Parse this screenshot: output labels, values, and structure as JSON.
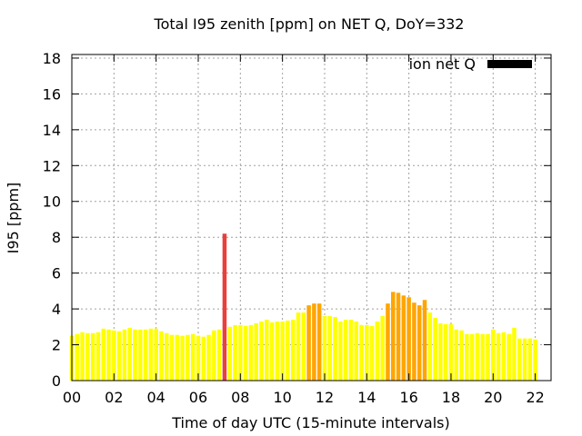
{
  "chart_data": {
    "type": "bar",
    "title": "Total I95 zenith [ppm] on NET Q, DoY=332",
    "xlabel": "Time of day UTC (15-minute intervals)",
    "ylabel": "I95 [ppm]",
    "xlim": [
      0,
      22.75
    ],
    "ylim": [
      0,
      18.2
    ],
    "x_ticks": [
      "00",
      "02",
      "04",
      "06",
      "08",
      "10",
      "12",
      "14",
      "16",
      "18",
      "20",
      "22"
    ],
    "y_ticks": [
      "0",
      "2",
      "4",
      "6",
      "8",
      "10",
      "12",
      "14",
      "16",
      "18"
    ],
    "grid": true,
    "legend": {
      "position": "top-right",
      "label": "ion net Q",
      "color": "#000000"
    },
    "bar_interval_hours": 0.25,
    "colors": {
      "low": "#ffff00",
      "mid": "#ffa500",
      "high": "#e8403c"
    },
    "series": [
      {
        "name": "ion net Q",
        "values": [
          2.5,
          2.6,
          2.7,
          2.65,
          2.65,
          2.7,
          2.9,
          2.85,
          2.8,
          2.75,
          2.85,
          2.95,
          2.85,
          2.85,
          2.85,
          2.9,
          2.9,
          2.75,
          2.65,
          2.55,
          2.55,
          2.5,
          2.55,
          2.6,
          2.5,
          2.45,
          2.55,
          2.8,
          2.85,
          8.2,
          3.0,
          3.1,
          3.1,
          3.05,
          3.1,
          3.2,
          3.3,
          3.4,
          3.25,
          3.3,
          3.3,
          3.35,
          3.4,
          3.8,
          3.8,
          4.2,
          4.3,
          4.3,
          3.6,
          3.6,
          3.55,
          3.3,
          3.4,
          3.4,
          3.3,
          3.1,
          3.1,
          3.05,
          3.3,
          3.6,
          4.3,
          4.95,
          4.9,
          4.75,
          4.65,
          4.35,
          4.2,
          4.5,
          3.8,
          3.5,
          3.2,
          3.15,
          3.15,
          2.85,
          2.8,
          2.6,
          2.6,
          2.65,
          2.6,
          2.6,
          2.85,
          2.65,
          2.7,
          2.6,
          2.95,
          2.35,
          2.35,
          2.35,
          2.3
        ]
      }
    ]
  }
}
